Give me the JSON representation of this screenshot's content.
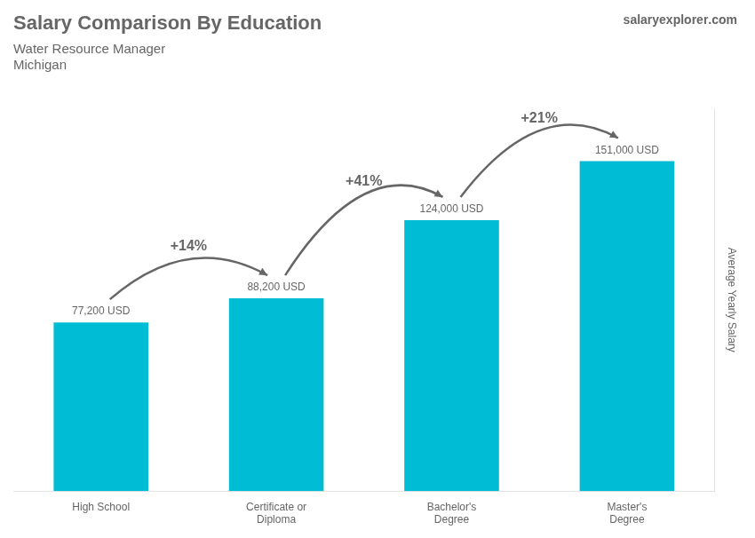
{
  "chart_data": {
    "type": "bar",
    "title": "Salary Comparison By Education",
    "subtitle": [
      "Water Resource Manager",
      "Michigan"
    ],
    "brand": [
      "salary",
      "explorer",
      ".com"
    ],
    "ylabel": "Average Yearly Salary",
    "categories": [
      "High School",
      "Certificate or\nDiploma",
      "Bachelor's\nDegree",
      "Master's\nDegree"
    ],
    "values": [
      77200,
      88200,
      124000,
      151000
    ],
    "value_labels": [
      "77,200 USD",
      "88,200 USD",
      "124,000 USD",
      "151,000 USD"
    ],
    "data_labels": true,
    "annotations": [
      "+14%",
      "+41%",
      "+21%"
    ],
    "color": "#00bcd4",
    "ylim": [
      0,
      175000
    ],
    "grid": false,
    "tick_labels": "x"
  }
}
